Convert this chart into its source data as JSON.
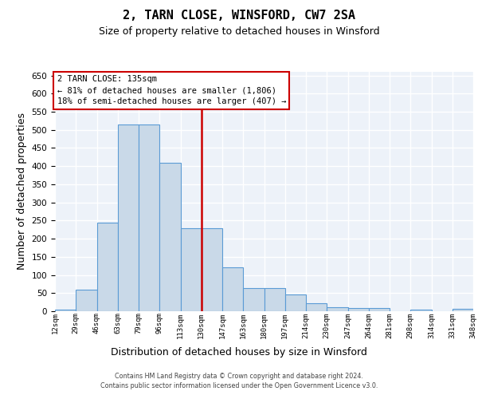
{
  "title": "2, TARN CLOSE, WINSFORD, CW7 2SA",
  "subtitle": "Size of property relative to detached houses in Winsford",
  "xlabel": "Distribution of detached houses by size in Winsford",
  "ylabel": "Number of detached properties",
  "bar_labels": [
    "12sqm",
    "29sqm",
    "46sqm",
    "63sqm",
    "79sqm",
    "96sqm",
    "113sqm",
    "130sqm",
    "147sqm",
    "163sqm",
    "180sqm",
    "197sqm",
    "214sqm",
    "230sqm",
    "247sqm",
    "264sqm",
    "281sqm",
    "298sqm",
    "314sqm",
    "331sqm",
    "348sqm"
  ],
  "bar_values": [
    5,
    60,
    245,
    515,
    515,
    410,
    228,
    228,
    120,
    63,
    63,
    46,
    22,
    12,
    9,
    9,
    0,
    5,
    0,
    7
  ],
  "bar_color": "#c9d9e8",
  "bar_edge_color": "#5b9bd5",
  "background_color": "#edf2f9",
  "grid_color": "#ffffff",
  "property_label": "2 TARN CLOSE: 135sqm",
  "annotation_line1": "← 81% of detached houses are smaller (1,806)",
  "annotation_line2": "18% of semi-detached houses are larger (407) →",
  "vline_color": "#cc0000",
  "ylim": [
    0,
    660
  ],
  "yticks": [
    0,
    50,
    100,
    150,
    200,
    250,
    300,
    350,
    400,
    450,
    500,
    550,
    600,
    650
  ],
  "footer_line1": "Contains HM Land Registry data © Crown copyright and database right 2024.",
  "footer_line2": "Contains public sector information licensed under the Open Government Licence v3.0.",
  "title_fontsize": 11,
  "subtitle_fontsize": 9,
  "ylabel_fontsize": 9,
  "xlabel_fontsize": 9
}
